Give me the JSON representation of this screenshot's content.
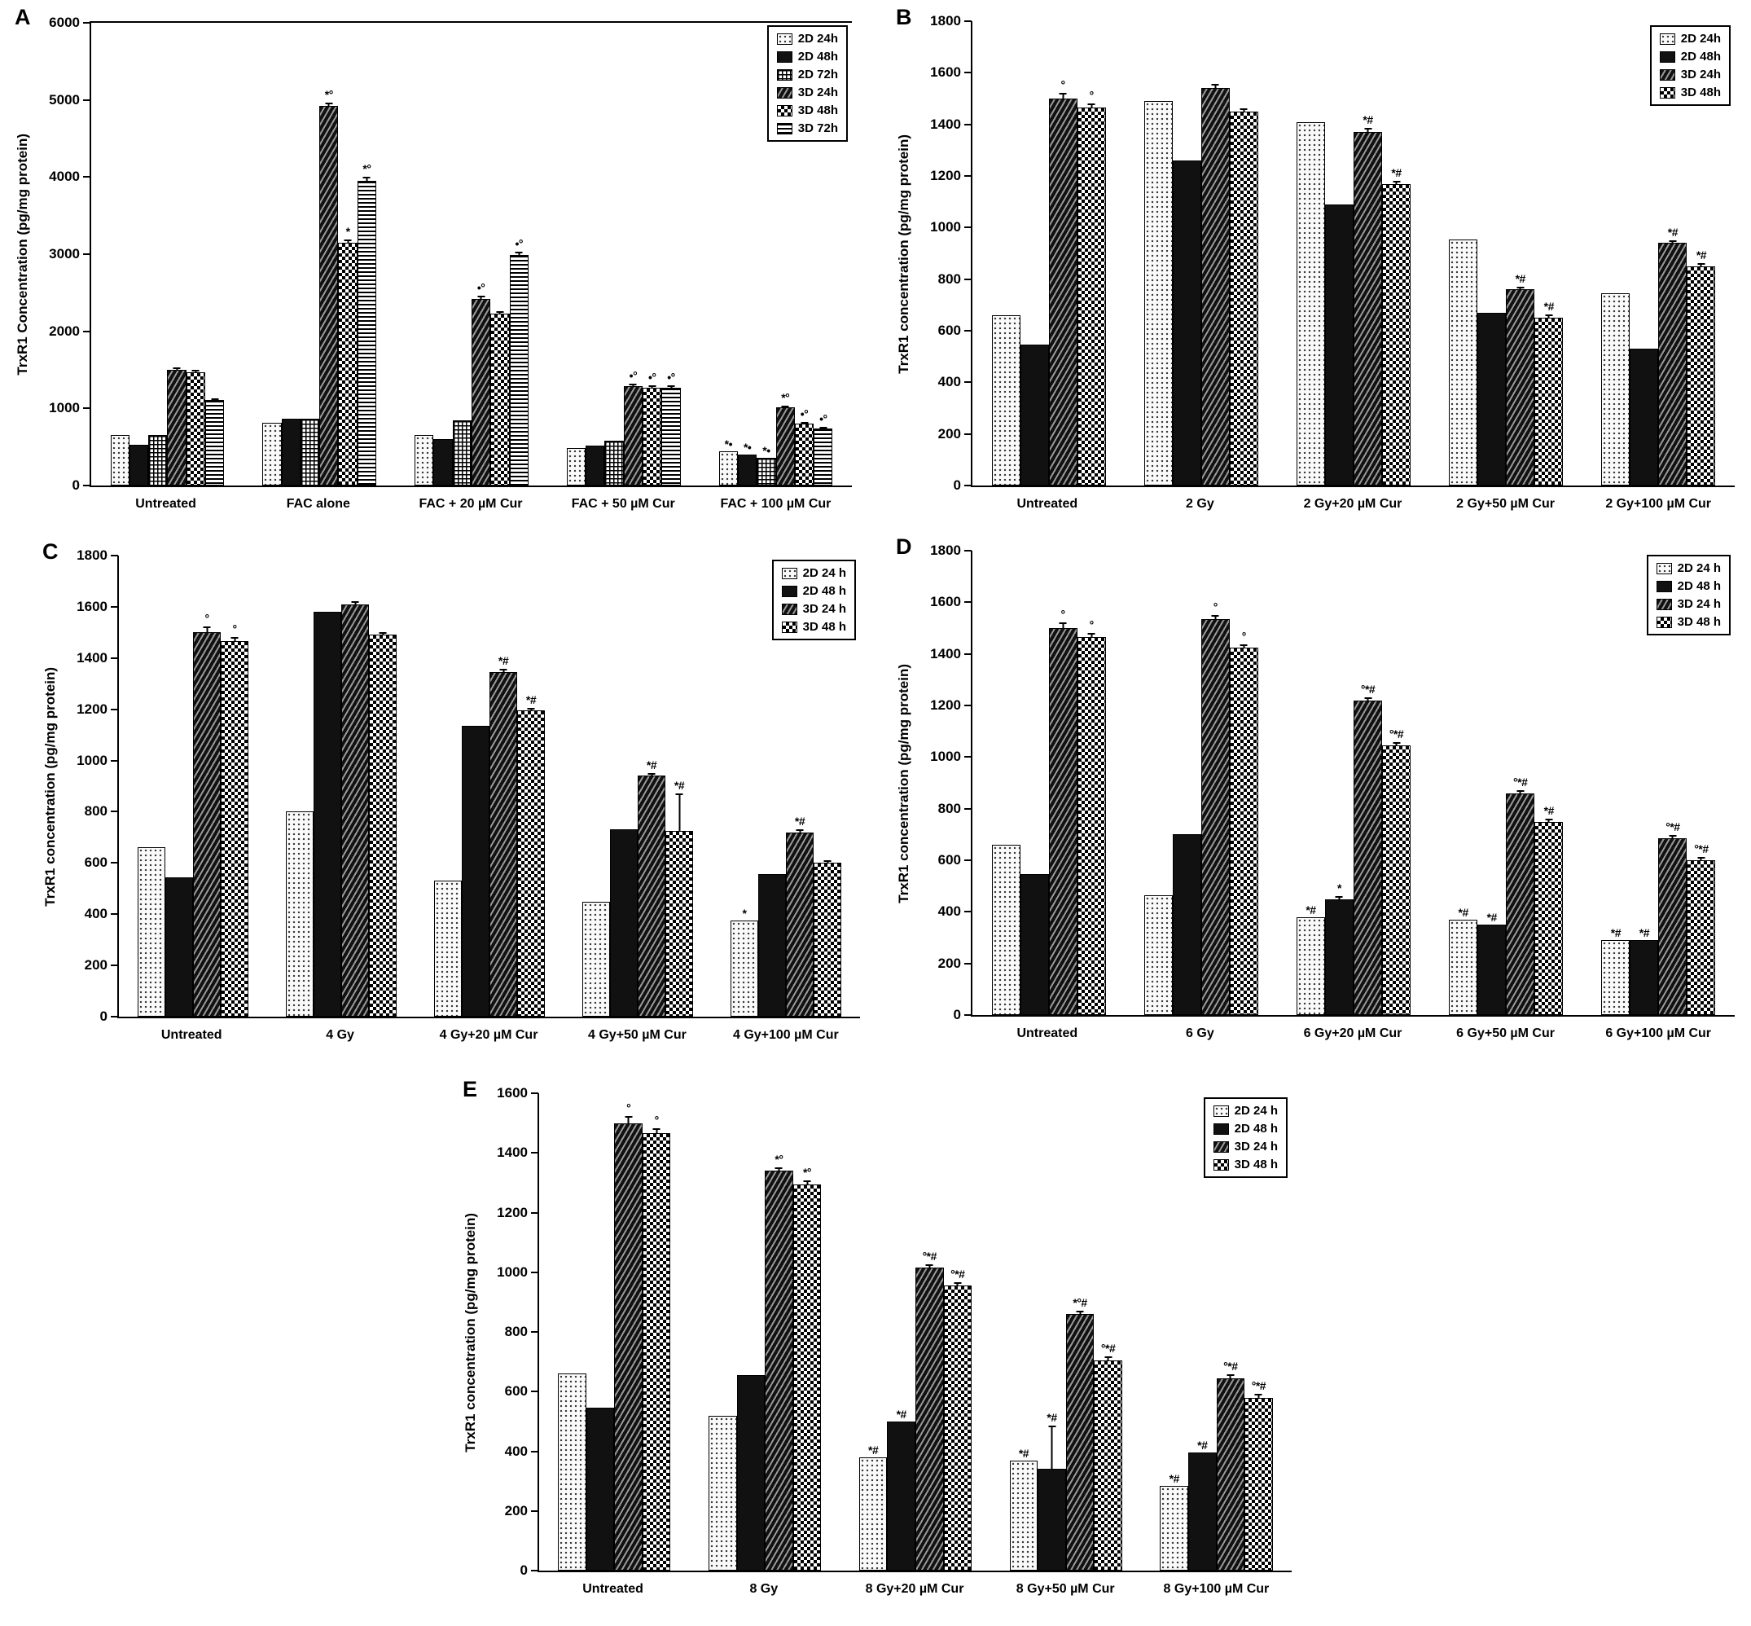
{
  "chart_data": [
    {
      "panel": "A",
      "type": "bar",
      "ylabel": "TrxR1 Concentration (pg/mg protein)",
      "ylim": [
        0,
        6000
      ],
      "ytick_step": 1000,
      "legend_position": "top-right",
      "categories": [
        "Untreated",
        "FAC alone",
        "FAC + 20 µM Cur",
        "FAC + 50 µM Cur",
        "FAC + 100 µM Cur"
      ],
      "series": [
        {
          "name": "2D 24h",
          "pattern": "dots",
          "values": [
            660,
            810,
            660,
            490,
            440
          ],
          "errors": [
            0,
            0,
            0,
            0,
            0
          ],
          "annotations": [
            "",
            "",
            "",
            "",
            "*•"
          ]
        },
        {
          "name": "2D 48h",
          "pattern": "solid",
          "values": [
            530,
            870,
            600,
            520,
            400
          ],
          "errors": [
            0,
            0,
            0,
            0,
            0
          ],
          "annotations": [
            "",
            "",
            "",
            "",
            "*•"
          ]
        },
        {
          "name": "2D 72h",
          "pattern": "grid",
          "values": [
            650,
            870,
            840,
            580,
            360
          ],
          "errors": [
            0,
            0,
            0,
            0,
            0
          ],
          "annotations": [
            "",
            "",
            "",
            "",
            "*•"
          ]
        },
        {
          "name": "3D 24h",
          "pattern": "diag",
          "values": [
            1500,
            4920,
            2420,
            1290,
            1010
          ],
          "errors": [
            40,
            60,
            50,
            40,
            40
          ],
          "annotations": [
            "",
            "*°",
            "•°",
            "•°",
            "*°"
          ]
        },
        {
          "name": "3D 48h",
          "pattern": "check",
          "values": [
            1470,
            3150,
            2230,
            1270,
            800
          ],
          "errors": [
            40,
            50,
            40,
            40,
            30
          ],
          "annotations": [
            "",
            "*",
            "",
            "•°",
            "•°"
          ]
        },
        {
          "name": "3D 72h",
          "pattern": "hlines",
          "values": [
            1110,
            3950,
            2990,
            1270,
            740
          ],
          "errors": [
            30,
            60,
            50,
            40,
            30
          ],
          "annotations": [
            "",
            "*°",
            "•°",
            "•°",
            "•°"
          ]
        }
      ]
    },
    {
      "panel": "B",
      "type": "bar",
      "ylabel": "TrxR1 concentration (pg/mg protein)",
      "ylim": [
        0,
        1800
      ],
      "ytick_step": 200,
      "legend_position": "top-right",
      "categories": [
        "Untreated",
        "2 Gy",
        "2 Gy+20 µM Cur",
        "2 Gy+50 µM Cur",
        "2 Gy+100 µM Cur"
      ],
      "series": [
        {
          "name": "2D 24h",
          "pattern": "dots",
          "values": [
            660,
            1490,
            1410,
            955,
            745
          ],
          "errors": [
            0,
            0,
            0,
            0,
            0
          ],
          "annotations": [
            "",
            "",
            "",
            "",
            ""
          ]
        },
        {
          "name": "2D 48h",
          "pattern": "solid",
          "values": [
            545,
            1260,
            1090,
            670,
            530
          ],
          "errors": [
            0,
            0,
            0,
            0,
            0
          ],
          "annotations": [
            "",
            "",
            "",
            "",
            ""
          ]
        },
        {
          "name": "3D 24h",
          "pattern": "diag",
          "values": [
            1500,
            1540,
            1370,
            760,
            940
          ],
          "errors": [
            25,
            20,
            20,
            15,
            15
          ],
          "annotations": [
            "°",
            "",
            "*#",
            "*#",
            "*#"
          ]
        },
        {
          "name": "3D 48h",
          "pattern": "check",
          "values": [
            1465,
            1450,
            1170,
            650,
            850
          ],
          "errors": [
            20,
            15,
            15,
            15,
            15
          ],
          "annotations": [
            "°",
            "",
            "*#",
            "*#",
            "*#"
          ]
        }
      ]
    },
    {
      "panel": "C",
      "type": "bar",
      "ylabel": "TrxR1 concentration (pg/mg protein)",
      "ylim": [
        0,
        1800
      ],
      "ytick_step": 200,
      "legend_position": "top-right",
      "categories": [
        "Untreated",
        "4 Gy",
        "4 Gy+20 µM Cur",
        "4 Gy+50 µM Cur",
        "4 Gy+100 µM Cur"
      ],
      "series": [
        {
          "name": "2D 24 h",
          "pattern": "dots",
          "values": [
            660,
            800,
            530,
            450,
            375
          ],
          "errors": [
            0,
            0,
            0,
            0,
            0
          ],
          "annotations": [
            "",
            "",
            "",
            "",
            "*"
          ]
        },
        {
          "name": "2D 48 h",
          "pattern": "solid",
          "values": [
            545,
            1580,
            1135,
            730,
            555
          ],
          "errors": [
            0,
            0,
            0,
            0,
            0
          ],
          "annotations": [
            "",
            "",
            "",
            "",
            ""
          ]
        },
        {
          "name": "3D 24 h",
          "pattern": "diag",
          "values": [
            1500,
            1610,
            1345,
            940,
            720
          ],
          "errors": [
            25,
            15,
            15,
            15,
            15
          ],
          "annotations": [
            "°",
            "",
            "*#",
            "*#",
            "*#"
          ]
        },
        {
          "name": "3D 48 h",
          "pattern": "check",
          "values": [
            1465,
            1490,
            1195,
            725,
            600
          ],
          "errors": [
            20,
            15,
            15,
            150,
            15
          ],
          "annotations": [
            "°",
            "",
            "*#",
            "*#",
            ""
          ]
        }
      ]
    },
    {
      "panel": "D",
      "type": "bar",
      "ylabel": "TrxR1 concentration (pg/mg protein)",
      "ylim": [
        0,
        1800
      ],
      "ytick_step": 200,
      "legend_position": "top-right",
      "categories": [
        "Untreated",
        "6 Gy",
        "6 Gy+20 µM Cur",
        "6 Gy+50 µM Cur",
        "6 Gy+100 µM Cur"
      ],
      "series": [
        {
          "name": "2D 24 h",
          "pattern": "dots",
          "values": [
            660,
            465,
            380,
            370,
            290
          ],
          "errors": [
            0,
            0,
            0,
            0,
            0
          ],
          "annotations": [
            "",
            "",
            "*#",
            "*#",
            "*#"
          ]
        },
        {
          "name": "2D 48 h",
          "pattern": "solid",
          "values": [
            545,
            700,
            450,
            350,
            290
          ],
          "errors": [
            0,
            0,
            15,
            0,
            0
          ],
          "annotations": [
            "",
            "",
            "*",
            "*#",
            "*#"
          ]
        },
        {
          "name": "3D 24 h",
          "pattern": "diag",
          "values": [
            1500,
            1535,
            1220,
            860,
            685
          ],
          "errors": [
            25,
            20,
            15,
            15,
            15
          ],
          "annotations": [
            "°",
            "°",
            "°*#",
            "°*#",
            "°*#"
          ]
        },
        {
          "name": "3D 48 h",
          "pattern": "check",
          "values": [
            1465,
            1425,
            1045,
            750,
            600
          ],
          "errors": [
            20,
            15,
            15,
            15,
            15
          ],
          "annotations": [
            "°",
            "°",
            "°*#",
            "*#",
            "°*#"
          ]
        }
      ]
    },
    {
      "panel": "E",
      "type": "bar",
      "ylabel": "TrxR1 concentration (pg/mg protein)",
      "ylim": [
        0,
        1600
      ],
      "ytick_step": 200,
      "legend_position": "top-right",
      "categories": [
        "Untreated",
        "8 Gy",
        "8 Gy+20 µM Cur",
        "8 Gy+50 µM Cur",
        "8 Gy+100 µM Cur"
      ],
      "series": [
        {
          "name": "2D 24 h",
          "pattern": "dots",
          "values": [
            660,
            520,
            380,
            370,
            285
          ],
          "errors": [
            0,
            0,
            0,
            0,
            0
          ],
          "annotations": [
            "",
            "",
            "*#",
            "*#",
            "*#"
          ]
        },
        {
          "name": "2D 48 h",
          "pattern": "solid",
          "values": [
            545,
            655,
            500,
            340,
            395
          ],
          "errors": [
            0,
            0,
            0,
            150,
            0
          ],
          "annotations": [
            "",
            "",
            "*#",
            "*#",
            "*#"
          ]
        },
        {
          "name": "3D 24 h",
          "pattern": "diag",
          "values": [
            1500,
            1340,
            1015,
            860,
            645
          ],
          "errors": [
            25,
            15,
            15,
            15,
            15
          ],
          "annotations": [
            "°",
            "*°",
            "°*#",
            "*°#",
            "°*#"
          ]
        },
        {
          "name": "3D 48 h",
          "pattern": "check",
          "values": [
            1465,
            1295,
            955,
            705,
            580
          ],
          "errors": [
            20,
            15,
            15,
            15,
            15
          ],
          "annotations": [
            "°",
            "*°",
            "°*#",
            "°*#",
            "°*#"
          ]
        }
      ]
    }
  ]
}
